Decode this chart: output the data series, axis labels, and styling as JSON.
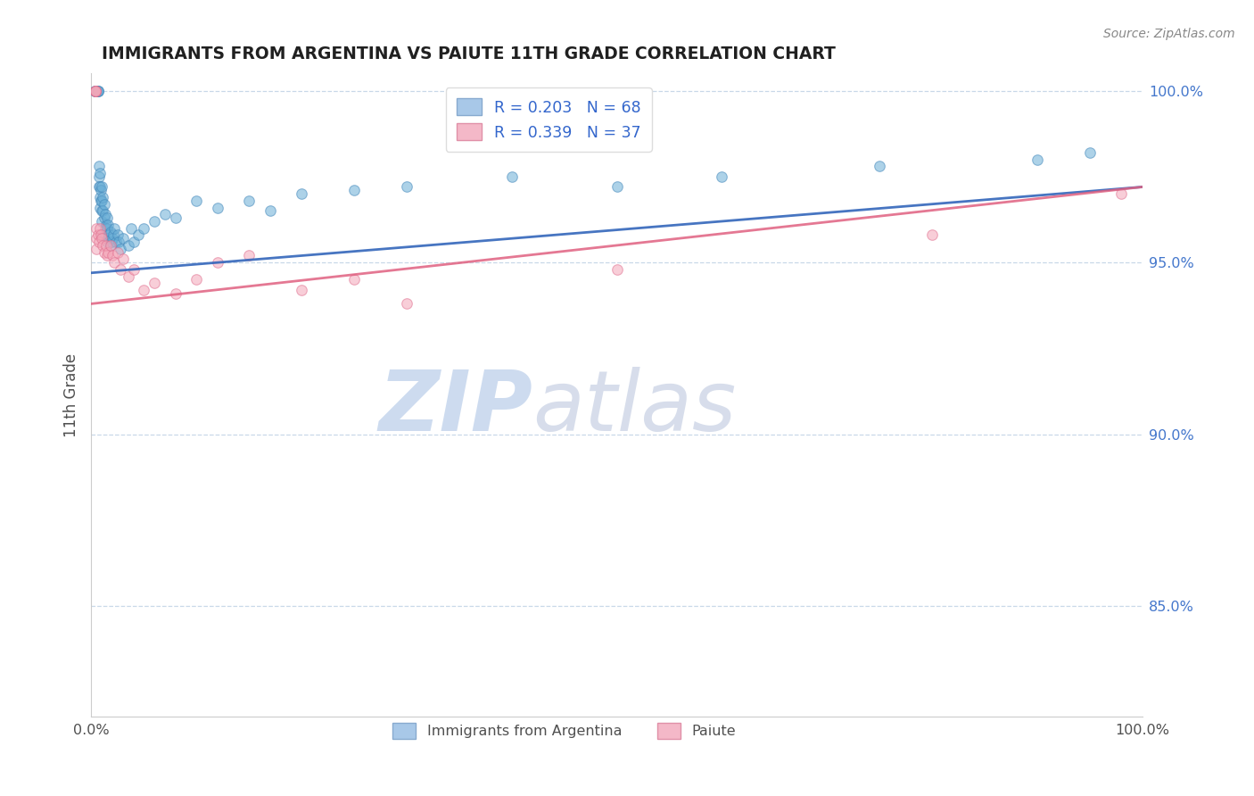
{
  "title": "IMMIGRANTS FROM ARGENTINA VS PAIUTE 11TH GRADE CORRELATION CHART",
  "source_text": "Source: ZipAtlas.com",
  "ylabel": "11th Grade",
  "xlim": [
    0.0,
    1.0
  ],
  "ylim_min": 0.818,
  "ylim_max": 1.005,
  "y_ticks": [
    0.85,
    0.9,
    0.95,
    1.0
  ],
  "y_tick_labels": [
    "85.0%",
    "90.0%",
    "95.0%",
    "100.0%"
  ],
  "x_ticks": [
    0.0,
    1.0
  ],
  "x_tick_labels": [
    "0.0%",
    "100.0%"
  ],
  "blue_line": {
    "x0": 0.0,
    "y0": 0.947,
    "x1": 1.0,
    "y1": 0.972
  },
  "pink_line": {
    "x0": 0.0,
    "y0": 0.938,
    "x1": 1.0,
    "y1": 0.972
  },
  "blue_color": "#6aaed6",
  "blue_edge": "#4488bb",
  "pink_color": "#f4a6b8",
  "pink_edge": "#e07090",
  "blue_line_color": "#3366bb",
  "pink_line_color": "#e06080",
  "scatter_blue_x": [
    0.003,
    0.004,
    0.004,
    0.005,
    0.005,
    0.005,
    0.006,
    0.006,
    0.006,
    0.007,
    0.007,
    0.007,
    0.008,
    0.008,
    0.008,
    0.008,
    0.009,
    0.009,
    0.01,
    0.01,
    0.01,
    0.01,
    0.01,
    0.011,
    0.011,
    0.012,
    0.012,
    0.013,
    0.013,
    0.014,
    0.015,
    0.015,
    0.015,
    0.016,
    0.016,
    0.017,
    0.018,
    0.018,
    0.019,
    0.02,
    0.021,
    0.022,
    0.023,
    0.025,
    0.026,
    0.028,
    0.03,
    0.035,
    0.038,
    0.04,
    0.045,
    0.05,
    0.06,
    0.07,
    0.08,
    0.1,
    0.12,
    0.15,
    0.17,
    0.2,
    0.25,
    0.3,
    0.4,
    0.5,
    0.6,
    0.75,
    0.9,
    0.95
  ],
  "scatter_blue_y": [
    1.0,
    1.0,
    1.0,
    1.0,
    1.0,
    1.0,
    1.0,
    1.0,
    1.0,
    0.978,
    0.975,
    0.972,
    0.976,
    0.972,
    0.969,
    0.966,
    0.971,
    0.968,
    0.972,
    0.968,
    0.965,
    0.962,
    0.958,
    0.969,
    0.965,
    0.967,
    0.963,
    0.964,
    0.96,
    0.961,
    0.963,
    0.96,
    0.956,
    0.961,
    0.957,
    0.958,
    0.959,
    0.955,
    0.956,
    0.957,
    0.958,
    0.96,
    0.956,
    0.958,
    0.956,
    0.954,
    0.957,
    0.955,
    0.96,
    0.956,
    0.958,
    0.96,
    0.962,
    0.964,
    0.963,
    0.968,
    0.966,
    0.968,
    0.965,
    0.97,
    0.971,
    0.972,
    0.975,
    0.972,
    0.975,
    0.978,
    0.98,
    0.982
  ],
  "scatter_pink_x": [
    0.004,
    0.004,
    0.004,
    0.004,
    0.005,
    0.005,
    0.005,
    0.006,
    0.007,
    0.008,
    0.009,
    0.01,
    0.011,
    0.012,
    0.014,
    0.015,
    0.016,
    0.018,
    0.02,
    0.022,
    0.025,
    0.028,
    0.03,
    0.035,
    0.04,
    0.05,
    0.06,
    0.08,
    0.1,
    0.12,
    0.15,
    0.2,
    0.25,
    0.3,
    0.5,
    0.8,
    0.98
  ],
  "scatter_pink_y": [
    1.0,
    1.0,
    1.0,
    1.0,
    0.96,
    0.957,
    0.954,
    0.958,
    0.956,
    0.96,
    0.958,
    0.957,
    0.955,
    0.953,
    0.955,
    0.952,
    0.953,
    0.955,
    0.952,
    0.95,
    0.953,
    0.948,
    0.951,
    0.946,
    0.948,
    0.942,
    0.944,
    0.941,
    0.945,
    0.95,
    0.952,
    0.942,
    0.945,
    0.938,
    0.948,
    0.958,
    0.97
  ],
  "grid_color": "#c8d8e8",
  "background_color": "#ffffff",
  "title_color": "#202020",
  "source_color": "#888888",
  "axis_label_color": "#505050",
  "right_tick_color": "#4477cc",
  "marker_size": 70,
  "marker_alpha": 0.55,
  "marker_linewidth": 0.8,
  "line_width": 2.0,
  "watermark_zip_color": "#c8d8ee",
  "watermark_atlas_color": "#d0d8e8"
}
